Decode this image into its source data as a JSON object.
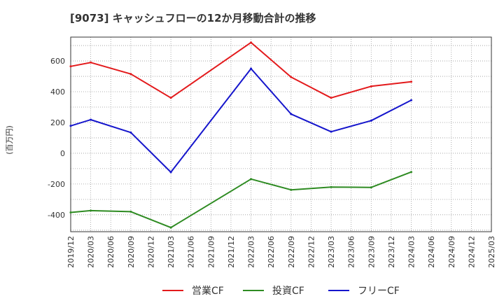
{
  "chart_data": {
    "type": "line",
    "title": "[9073]  キャッシュフローの12か月移動合計の推移",
    "ylabel": "(百万円)",
    "xlabel": "",
    "ylim": [
      -510,
      755
    ],
    "yticks": [
      -400,
      -200,
      0,
      200,
      400,
      600
    ],
    "x_ticks": [
      "2019/12",
      "2020/03",
      "2020/06",
      "2020/09",
      "2020/12",
      "2021/03",
      "2021/06",
      "2021/09",
      "2021/12",
      "2022/03",
      "2022/06",
      "2022/09",
      "2022/12",
      "2023/03",
      "2023/06",
      "2023/09",
      "2023/12",
      "2024/03",
      "2024/06",
      "2024/09",
      "2024/12",
      "2025/03"
    ],
    "series": [
      {
        "name": "営業CF",
        "color": "#e31a1c",
        "points": [
          [
            "2019/12",
            565
          ],
          [
            "2020/03",
            590
          ],
          [
            "2020/09",
            515
          ],
          [
            "2021/03",
            360
          ],
          [
            "2022/03",
            720
          ],
          [
            "2022/09",
            495
          ],
          [
            "2023/03",
            360
          ],
          [
            "2023/09",
            435
          ],
          [
            "2024/03",
            465
          ]
        ]
      },
      {
        "name": "投資CF",
        "color": "#2e8b22",
        "points": [
          [
            "2019/12",
            -385
          ],
          [
            "2020/03",
            -373
          ],
          [
            "2020/09",
            -380
          ],
          [
            "2021/03",
            -483
          ],
          [
            "2022/03",
            -168
          ],
          [
            "2022/09",
            -238
          ],
          [
            "2023/03",
            -220
          ],
          [
            "2023/09",
            -222
          ],
          [
            "2024/03",
            -122
          ]
        ]
      },
      {
        "name": "フリーCF",
        "color": "#1515cc",
        "points": [
          [
            "2019/12",
            178
          ],
          [
            "2020/03",
            218
          ],
          [
            "2020/09",
            135
          ],
          [
            "2021/03",
            -123
          ],
          [
            "2022/03",
            550
          ],
          [
            "2022/09",
            255
          ],
          [
            "2023/03",
            140
          ],
          [
            "2023/09",
            212
          ],
          [
            "2024/03",
            345
          ]
        ]
      }
    ],
    "legend_position": "bottom"
  }
}
